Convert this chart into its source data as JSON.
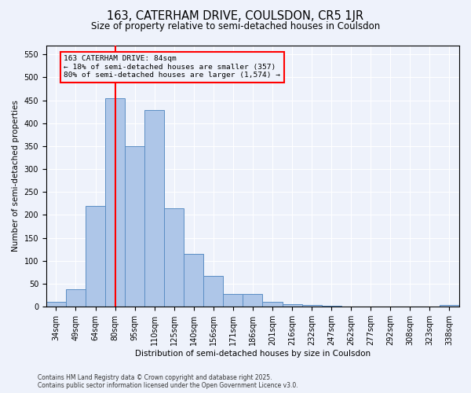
{
  "title1": "163, CATERHAM DRIVE, COULSDON, CR5 1JR",
  "title2": "Size of property relative to semi-detached houses in Coulsdon",
  "xlabel": "Distribution of semi-detached houses by size in Coulsdon",
  "ylabel": "Number of semi-detached properties",
  "categories": [
    "34sqm",
    "49sqm",
    "64sqm",
    "80sqm",
    "95sqm",
    "110sqm",
    "125sqm",
    "140sqm",
    "156sqm",
    "171sqm",
    "186sqm",
    "201sqm",
    "216sqm",
    "232sqm",
    "247sqm",
    "262sqm",
    "277sqm",
    "292sqm",
    "308sqm",
    "323sqm",
    "338sqm"
  ],
  "values": [
    10,
    38,
    220,
    455,
    350,
    428,
    215,
    115,
    68,
    27,
    27,
    10,
    5,
    4,
    2,
    1,
    0,
    0,
    0,
    0,
    4
  ],
  "bar_color": "#aec6e8",
  "bar_edge_color": "#5b8ec4",
  "red_line_x": 3,
  "annotation_title": "163 CATERHAM DRIVE: 84sqm",
  "annotation_line1": "← 18% of semi-detached houses are smaller (357)",
  "annotation_line2": "80% of semi-detached houses are larger (1,574) →",
  "ylim": [
    0,
    570
  ],
  "yticks": [
    0,
    50,
    100,
    150,
    200,
    250,
    300,
    350,
    400,
    450,
    500,
    550
  ],
  "footer1": "Contains HM Land Registry data © Crown copyright and database right 2025.",
  "footer2": "Contains public sector information licensed under the Open Government Licence v3.0.",
  "bg_color": "#eef2fb"
}
